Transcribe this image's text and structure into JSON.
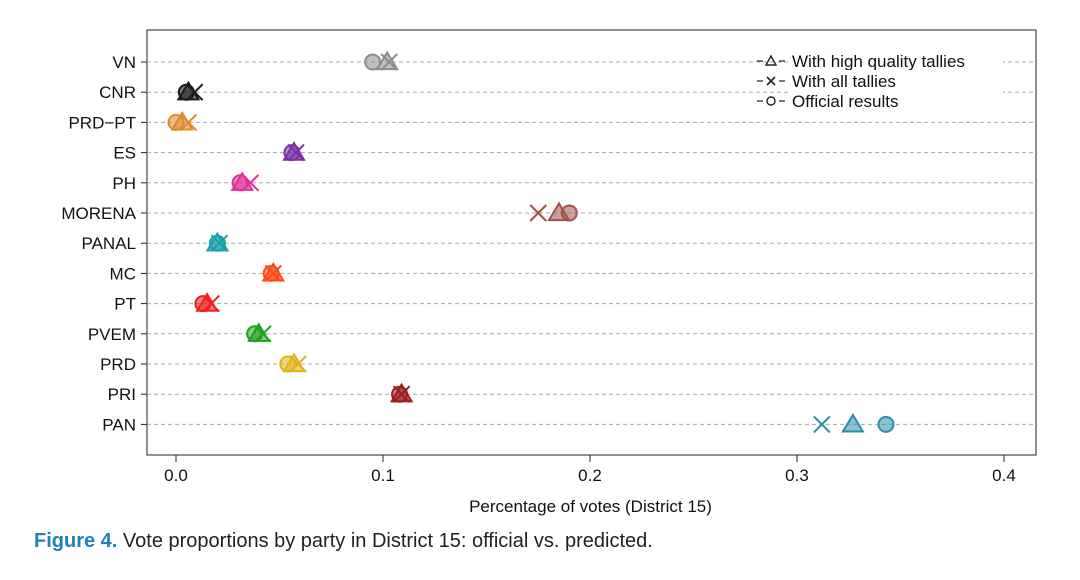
{
  "caption": {
    "label": "Figure 4.",
    "text": " Vote proportions by party in District 15: official vs. predicted."
  },
  "chart_data": {
    "type": "scatter",
    "orientation": "horizontal-dot",
    "title": "",
    "xlabel": "Percentage of votes (District 15)",
    "ylabel": "",
    "xlim": [
      -0.008,
      0.41
    ],
    "xticks": [
      0.0,
      0.1,
      0.2,
      0.3,
      0.4
    ],
    "xtick_labels": [
      "0.0",
      "0.1",
      "0.2",
      "0.3",
      "0.4"
    ],
    "grid": "horizontal dashed",
    "legend_position": "top-right",
    "legend": [
      {
        "marker": "triangle",
        "label": "With high quality tallies"
      },
      {
        "marker": "x",
        "label": "With all tallies"
      },
      {
        "marker": "circle",
        "label": "Official results"
      }
    ],
    "categories": [
      "VN",
      "CNR",
      "PRD−PT",
      "ES",
      "PH",
      "MORENA",
      "PANAL",
      "MC",
      "PT",
      "PVEM",
      "PRD",
      "PRI",
      "PAN"
    ],
    "colors": [
      "#8c8c8c",
      "#1a1a1a",
      "#e08a2c",
      "#7b2fa6",
      "#e0309a",
      "#a0524a",
      "#1aa0a8",
      "#ff4a14",
      "#f01f1f",
      "#22a022",
      "#e0b31a",
      "#9c1d1d",
      "#2a8ea8"
    ],
    "series": [
      {
        "name": "With high quality tallies",
        "marker": "triangle",
        "values": [
          0.102,
          0.006,
          0.003,
          0.057,
          0.032,
          0.185,
          0.02,
          0.047,
          0.015,
          0.04,
          0.057,
          0.109,
          0.327
        ]
      },
      {
        "name": "With all tallies",
        "marker": "x",
        "values": [
          0.103,
          0.009,
          0.006,
          0.058,
          0.036,
          0.175,
          0.021,
          0.047,
          0.017,
          0.042,
          0.059,
          0.109,
          0.312
        ]
      },
      {
        "name": "Official results",
        "marker": "circle",
        "values": [
          0.095,
          0.005,
          0.0,
          0.056,
          0.031,
          0.19,
          0.02,
          0.046,
          0.013,
          0.038,
          0.054,
          0.108,
          0.343
        ]
      }
    ]
  }
}
